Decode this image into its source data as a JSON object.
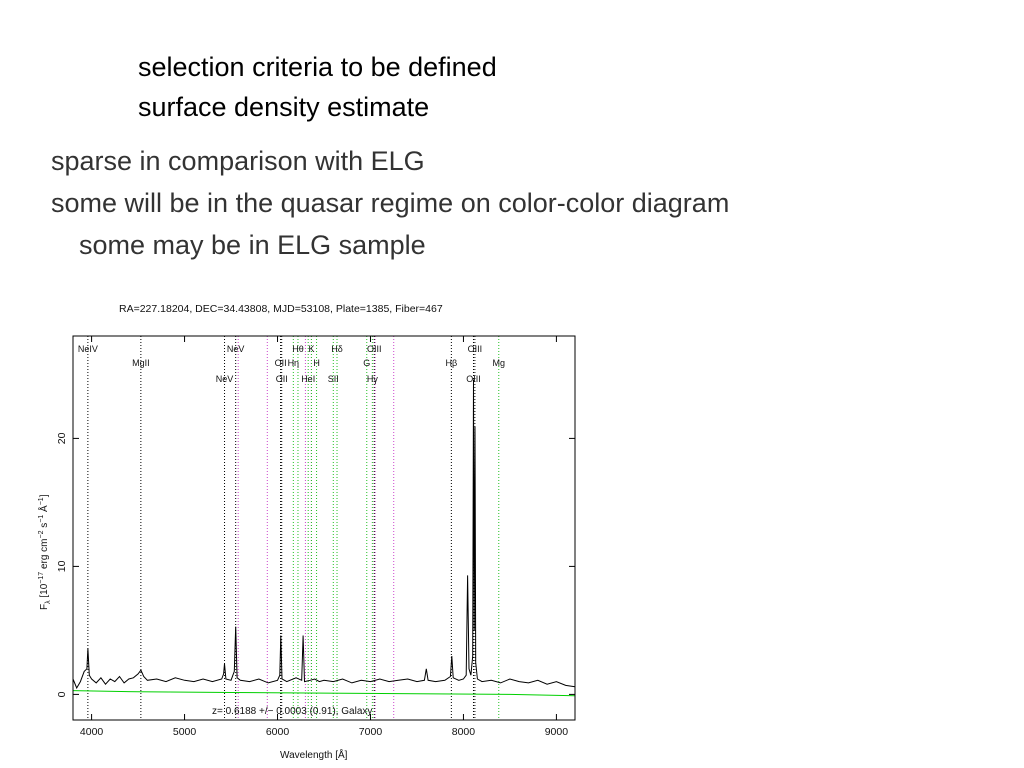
{
  "slide": {
    "sub_bullets": [
      "selection criteria to be defined",
      "surface density estimate"
    ],
    "bullets": [
      "sparse in comparison with ELG",
      "some will be in the quasar regime on color-color diagram"
    ],
    "indented_bullet": "some may be in ELG sample"
  },
  "chart_data": {
    "type": "line",
    "title": "RA=227.18204, DEC=34.43808, MJD=53108, Plate=1385, Fiber=467",
    "xlabel": "Wavelength [Å]",
    "ylabel_text": "F",
    "ylabel_sub": "λ",
    "ylabel_rest": " [10",
    "ylabel_exp": "−17",
    "ylabel_unit": " erg cm",
    "ylabel_unit_exp1": "−2",
    "ylabel_unit_mid": " s",
    "ylabel_unit_exp2": "−1",
    "ylabel_unit_end": " Å",
    "ylabel_unit_exp3": "−1",
    "ylabel_close": "]",
    "annotation": "z= 0.6188 +/− 0.0003 (0.91), Galaxy",
    "xlim": [
      3800,
      9200
    ],
    "ylim": [
      -2,
      28
    ],
    "xticks": [
      "4000",
      "5000",
      "6000",
      "7000",
      "8000",
      "9000"
    ],
    "xtick_values": [
      4000,
      5000,
      6000,
      7000,
      8000,
      9000
    ],
    "yticks": [
      "0",
      "10",
      "20"
    ],
    "ytick_values": [
      0,
      10,
      20
    ],
    "colors": {
      "flux": "#000000",
      "error": "#00d000",
      "emission_line": "#000000",
      "absorption_line": "#22c022",
      "sky_line": "#cc44cc"
    },
    "emission_lines": [
      {
        "label": "NeIV",
        "x": 3960,
        "row": 0
      },
      {
        "label": "MgII",
        "x": 4530,
        "row": 1
      },
      {
        "label": "NeV",
        "x": 5430,
        "row": 2
      },
      {
        "label": "NeV",
        "x": 5550,
        "row": 0
      },
      {
        "label": "OII",
        "x": 6033,
        "row": 1
      },
      {
        "label": "OII",
        "x": 6045,
        "row": 2
      },
      {
        "label": "OIII",
        "x": 7040,
        "row": 0
      },
      {
        "label": "OIII",
        "x": 8108,
        "row": 2
      },
      {
        "label": "OIII",
        "x": 8123,
        "row": 0
      },
      {
        "label": "Hβ",
        "x": 7870,
        "row": 1
      }
    ],
    "absorption_lines": [
      {
        "label": "Hθ",
        "x": 6220,
        "row": 0
      },
      {
        "label": "Hη",
        "x": 6170,
        "row": 1
      },
      {
        "label": "K",
        "x": 6365,
        "row": 0
      },
      {
        "label": "H",
        "x": 6420,
        "row": 1
      },
      {
        "label": "HeI",
        "x": 6330,
        "row": 2
      },
      {
        "label": "Hδ",
        "x": 6640,
        "row": 0
      },
      {
        "label": "SII",
        "x": 6600,
        "row": 2
      },
      {
        "label": "G",
        "x": 6960,
        "row": 1
      },
      {
        "label": "Hγ",
        "x": 7020,
        "row": 2
      },
      {
        "label": "Mg",
        "x": 8380,
        "row": 1
      }
    ],
    "sky_lines": [
      5577,
      5890,
      6300,
      6364,
      7050,
      7250
    ],
    "series": [
      {
        "name": "flux",
        "x": [
          3800,
          3840,
          3880,
          3920,
          3950,
          3960,
          3975,
          4000,
          4050,
          4100,
          4150,
          4200,
          4250,
          4300,
          4350,
          4400,
          4450,
          4500,
          4530,
          4560,
          4600,
          4700,
          4800,
          4900,
          5000,
          5100,
          5200,
          5300,
          5400,
          5420,
          5430,
          5445,
          5500,
          5535,
          5550,
          5565,
          5600,
          5700,
          5800,
          5900,
          6000,
          6025,
          6035,
          6048,
          6100,
          6200,
          6260,
          6275,
          6290,
          6350,
          6400,
          6450,
          6500,
          6600,
          6700,
          6800,
          6900,
          7000,
          7100,
          7200,
          7300,
          7400,
          7500,
          7580,
          7600,
          7620,
          7700,
          7800,
          7860,
          7875,
          7890,
          7950,
          8000,
          8030,
          8045,
          8060,
          8080,
          8100,
          8108,
          8116,
          8124,
          8132,
          8150,
          8200,
          8300,
          8400,
          8500,
          8600,
          8700,
          8800,
          8900,
          9000,
          9100,
          9200
        ],
        "y": [
          1.2,
          0.5,
          1.0,
          1.8,
          2.0,
          3.6,
          1.5,
          1.2,
          0.9,
          1.3,
          0.8,
          1.2,
          1.0,
          1.4,
          0.9,
          1.2,
          1.3,
          1.6,
          1.9,
          1.4,
          1.1,
          1.2,
          1.0,
          1.3,
          1.1,
          1.0,
          1.2,
          1.0,
          1.2,
          1.6,
          2.4,
          1.2,
          1.1,
          1.8,
          5.3,
          1.3,
          1.1,
          1.0,
          1.2,
          0.9,
          1.1,
          1.5,
          4.6,
          1.2,
          1.0,
          1.3,
          1.1,
          4.6,
          1.0,
          1.1,
          1.2,
          1.0,
          1.1,
          1.0,
          1.2,
          0.9,
          1.1,
          1.0,
          1.2,
          1.0,
          1.1,
          1.2,
          1.0,
          1.1,
          2.0,
          1.1,
          1.0,
          1.1,
          1.4,
          3.0,
          1.3,
          1.1,
          1.2,
          1.5,
          9.3,
          2.0,
          1.5,
          3.0,
          24.6,
          5.0,
          20.9,
          2.5,
          1.2,
          1.0,
          1.1,
          0.9,
          1.2,
          1.0,
          0.9,
          1.1,
          0.8,
          1.0,
          0.7,
          0.6
        ]
      },
      {
        "name": "error",
        "x": [
          3800,
          4500,
          5500,
          6500,
          7500,
          8500,
          9200
        ],
        "y": [
          0.3,
          0.2,
          0.15,
          0.1,
          0.05,
          0.0,
          -0.1
        ]
      }
    ]
  }
}
